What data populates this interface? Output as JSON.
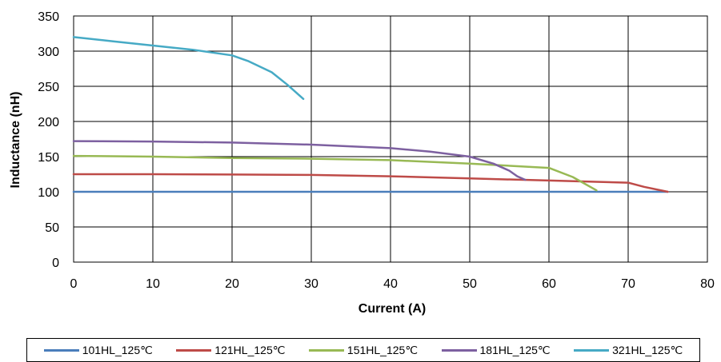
{
  "chart_data": {
    "type": "line",
    "xlabel": "Current (A)",
    "ylabel": "Inductance (nH)",
    "xlim": [
      0,
      80
    ],
    "ylim": [
      0,
      350
    ],
    "xticks": [
      0,
      10,
      20,
      30,
      40,
      50,
      60,
      70,
      80
    ],
    "yticks": [
      0,
      50,
      100,
      150,
      200,
      250,
      300,
      350
    ],
    "grid": true,
    "legend_position": "bottom",
    "series": [
      {
        "name": "101HL_125℃",
        "color": "#4a7ebb",
        "x": [
          0,
          75
        ],
        "y": [
          100,
          100
        ]
      },
      {
        "name": "121HL_125℃",
        "color": "#be4b48",
        "x": [
          0,
          10,
          20,
          30,
          40,
          50,
          60,
          70,
          72,
          75
        ],
        "y": [
          125,
          125,
          124.5,
          124,
          122,
          119,
          116,
          113,
          107,
          100
        ]
      },
      {
        "name": "151HL_125℃",
        "color": "#98b954",
        "x": [
          0,
          10,
          20,
          30,
          40,
          50,
          60,
          63,
          66
        ],
        "y": [
          151,
          150,
          148,
          147,
          145,
          140,
          134,
          121,
          102
        ]
      },
      {
        "name": "181HL_125℃",
        "color": "#7d60a0",
        "x": [
          0,
          10,
          20,
          30,
          40,
          45,
          50,
          53,
          55,
          56,
          57
        ],
        "y": [
          172,
          171.5,
          170,
          167,
          162,
          157,
          150,
          140,
          130,
          122,
          117
        ]
      },
      {
        "name": "321HL_125℃",
        "color": "#46aac5",
        "x": [
          0,
          5,
          10,
          15,
          20,
          22,
          25,
          27,
          29
        ],
        "y": [
          320,
          314,
          308,
          302,
          294,
          286,
          270,
          252,
          232
        ]
      }
    ]
  }
}
